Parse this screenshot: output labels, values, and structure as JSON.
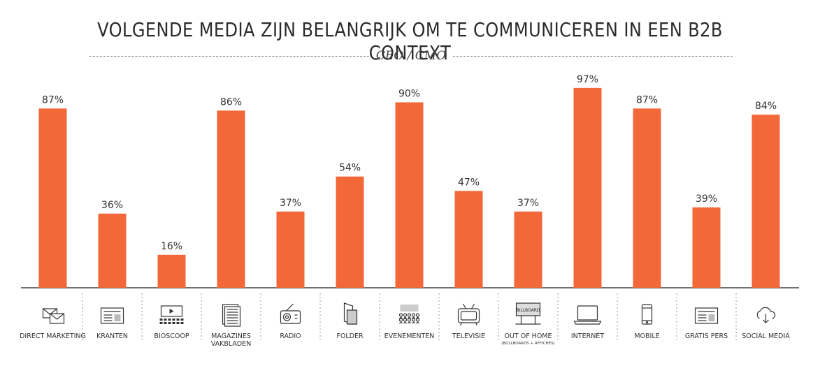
{
  "chart_data": {
    "type": "bar",
    "title": "VOLGENDE MEDIA ZIJN BELANGRIJK OM TE COMMUNICEREN IN EEN B2B CONTEXT",
    "subtitle": "CEO / CMO",
    "xlabel": "",
    "ylabel": "",
    "ylim": [
      0,
      100
    ],
    "grid": false,
    "bar_color": "#f26838",
    "categories": [
      {
        "label": "DIRECT MARKETING",
        "icon": "envelope-icon"
      },
      {
        "label": "KRANTEN",
        "icon": "newspaper-icon"
      },
      {
        "label": "BIOSCOOP",
        "icon": "cinema-screen-icon"
      },
      {
        "label": "MAGAZINES\nVAKBLADEN",
        "icon": "magazine-icon"
      },
      {
        "label": "RADIO",
        "icon": "radio-icon"
      },
      {
        "label": "FOLDER",
        "icon": "folder-leaflet-icon"
      },
      {
        "label": "EVENEMENTEN",
        "icon": "event-audience-icon"
      },
      {
        "label": "TELEVISIE",
        "icon": "television-icon"
      },
      {
        "label": "OUT OF HOME",
        "sublabel": "(BOLLBOARDS + AFFICHES)",
        "icon": "billboard-icon",
        "icon_text": "BILLBOARD"
      },
      {
        "label": "INTERNET",
        "icon": "laptop-icon"
      },
      {
        "label": "MOBILE",
        "icon": "mobile-phone-icon"
      },
      {
        "label": "GRATIS PERS",
        "icon": "free-newspaper-icon"
      },
      {
        "label": "SOCIAL MEDIA",
        "icon": "cloud-download-icon"
      }
    ],
    "values": [
      87,
      36,
      16,
      86,
      37,
      54,
      90,
      47,
      37,
      97,
      87,
      39,
      84
    ],
    "value_suffix": "%"
  }
}
